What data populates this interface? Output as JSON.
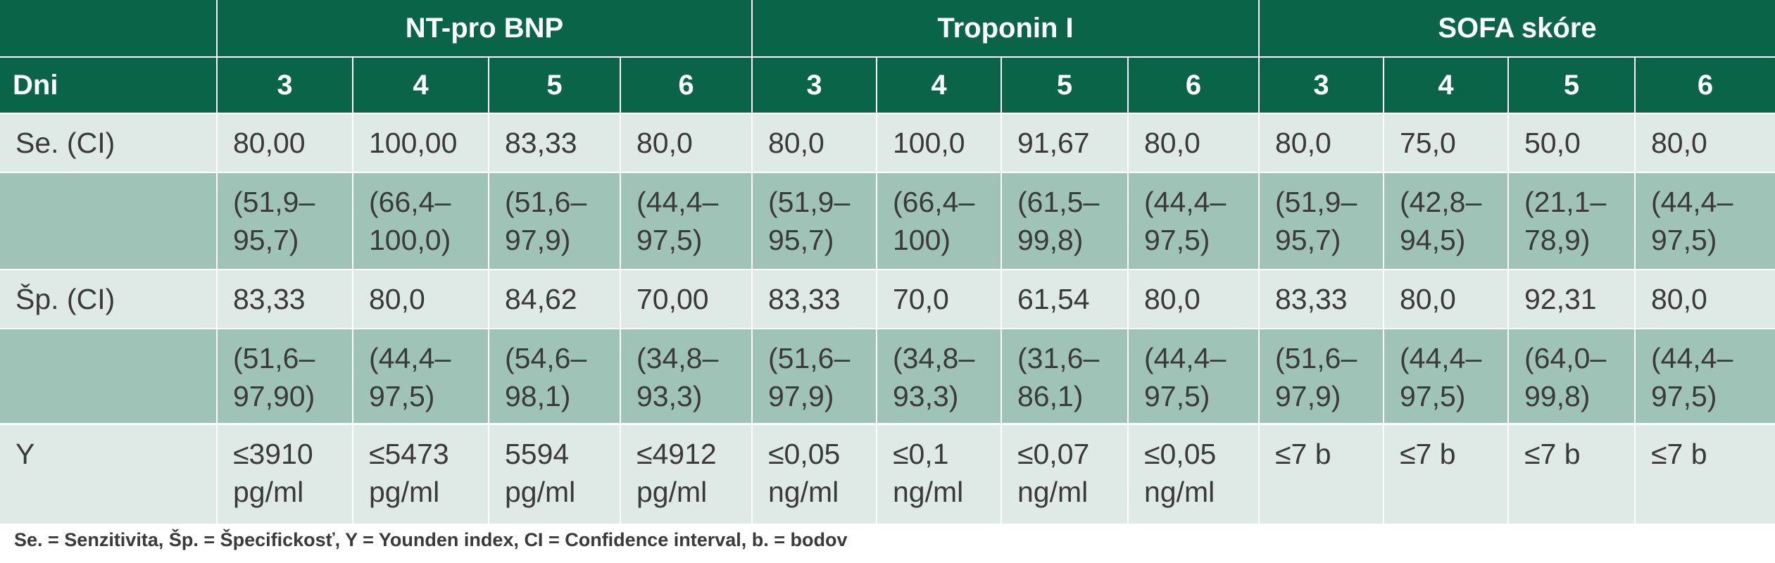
{
  "table": {
    "header_groups": [
      "",
      "NT-pro BNP",
      "Troponin I",
      "SOFA skóre"
    ],
    "row_label_header": "Dni",
    "days": [
      "3",
      "4",
      "5",
      "6",
      "3",
      "4",
      "5",
      "6",
      "3",
      "4",
      "5",
      "6"
    ],
    "rows": [
      {
        "label": "Se. (CI)",
        "shade": "light",
        "cells": [
          "80,00",
          "100,00",
          "83,33",
          "80,0",
          "80,0",
          "100,0",
          "91,67",
          "80,0",
          "80,0",
          "75,0",
          "50,0",
          "80,0"
        ]
      },
      {
        "label": "",
        "shade": "dark",
        "cells": [
          "(51,9–\n95,7)",
          "(66,4–\n100,0)",
          "(51,6–\n97,9)",
          "(44,4–\n97,5)",
          "(51,9–\n95,7)",
          "(66,4–\n100)",
          "(61,5–\n99,8)",
          "(44,4–\n97,5)",
          "(51,9–\n95,7)",
          "(42,8–\n94,5)",
          "(21,1–\n78,9)",
          "(44,4–\n97,5)"
        ]
      },
      {
        "label": "Šp. (CI)",
        "shade": "light",
        "cells": [
          "83,33",
          "80,0",
          "84,62",
          "70,00",
          "83,33",
          "70,0",
          "61,54",
          "80,0",
          "83,33",
          "80,0",
          "92,31",
          "80,0"
        ]
      },
      {
        "label": "",
        "shade": "dark",
        "cells": [
          "(51,6–\n97,90)",
          "(44,4–\n97,5)",
          "(54,6–\n98,1)",
          "(34,8–\n93,3)",
          "(51,6–\n97,9)",
          "(34,8–\n93,3)",
          "(31,6–\n86,1)",
          "(44,4–\n97,5)",
          "(51,6–\n97,9)",
          "(44,4–\n97,5)",
          "(64,0–\n99,8)",
          "(44,4–\n97,5)"
        ]
      },
      {
        "label": "Y",
        "shade": "light",
        "cells": [
          "≤3910\npg/ml",
          "≤5473\npg/ml",
          "5594\npg/ml",
          "≤4912\npg/ml",
          "≤0,05\nng/ml",
          "≤0,1\nng/ml",
          "≤0,07\nng/ml",
          "≤0,05\nng/ml",
          "≤7 b",
          "≤7 b",
          "≤7 b",
          "≤7 b"
        ]
      }
    ]
  },
  "footnote": "Se. = Senzitivita, Šp. = Špecifickosť, Y = Younden index, CI = Confidence interval, b. = bodov",
  "colors": {
    "header": "#0a6448",
    "light_row": "#dfeae7",
    "dark_row": "#9fc3b7",
    "text": "#3a3a3a"
  }
}
